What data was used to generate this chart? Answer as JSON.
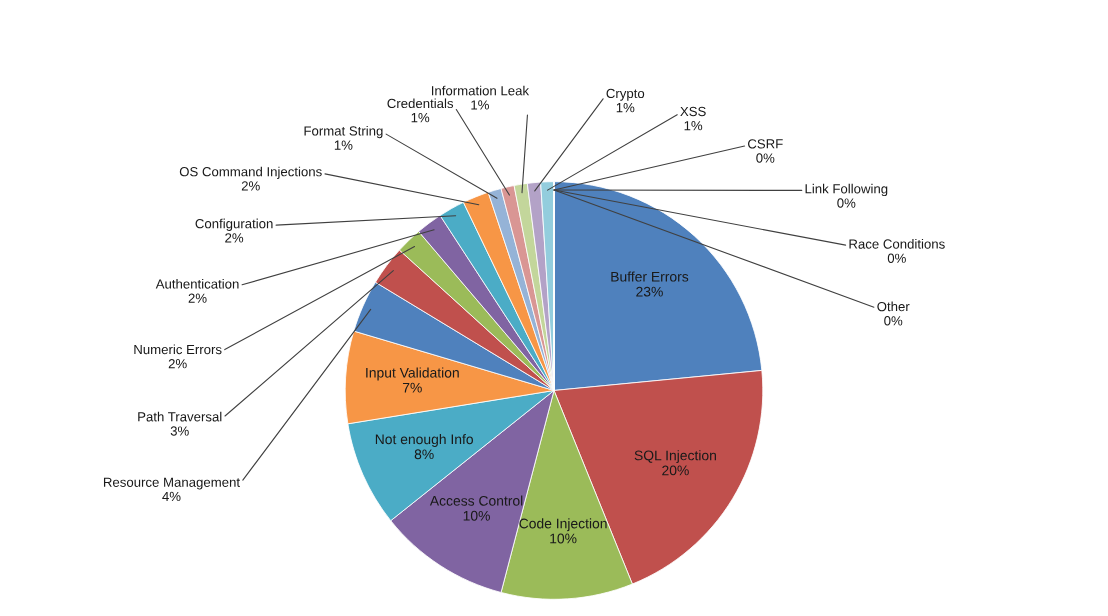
{
  "chart_data": {
    "type": "pie",
    "categories": [
      "Buffer Errors",
      "SQL Injection",
      "Code Injection",
      "Access Control",
      "Not enough Info",
      "Input Validation",
      "Resource Management",
      "Path Traversal",
      "Numeric Errors",
      "Authentication",
      "Configuration",
      "OS Command Injections",
      "Format String",
      "Credentials",
      "Information Leak",
      "Crypto",
      "XSS",
      "CSRF",
      "Link Following",
      "Race Conditions",
      "Other"
    ],
    "values": [
      23,
      20,
      10,
      10,
      8,
      7,
      4,
      3,
      2,
      2,
      2,
      2,
      1,
      1,
      1,
      1,
      1,
      0,
      0,
      0,
      0
    ],
    "value_labels": [
      "23%",
      "20%",
      "10%",
      "10%",
      "8%",
      "7%",
      "4%",
      "3%",
      "2%",
      "2%",
      "2%",
      "2%",
      "1%",
      "1%",
      "1%",
      "1%",
      "1%",
      "0%",
      "0%",
      "0%",
      "0%"
    ],
    "colors": [
      "#4f81bd",
      "#c0504d",
      "#9bbb59",
      "#8064a2",
      "#4bacc6",
      "#f79646",
      "#4f81bd",
      "#c0504d",
      "#9bbb59",
      "#8064a2",
      "#4bacc6",
      "#f79646",
      "#95b3d7",
      "#d99694",
      "#c3d69b",
      "#b3a2c7",
      "#93cddd",
      "#fac08f",
      "#a6a6a6",
      "#d9d9d9",
      "#c6d9f1"
    ]
  }
}
